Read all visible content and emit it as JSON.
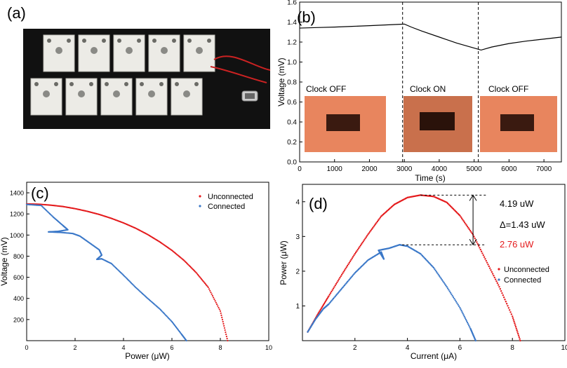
{
  "panel_labels": {
    "a": "(a)",
    "b": "(b)",
    "c": "(c)",
    "d": "(d)"
  },
  "colors": {
    "red": "#e41a1c",
    "blue": "#3b78c8",
    "photo_bg": "#111111",
    "photo_card": "#e8855e"
  },
  "panel_a": {
    "icons": [
      "battery-cell-icon",
      "clock-device-icon",
      "wire-icon"
    ]
  },
  "chart_data": [
    {
      "type": "line",
      "panel": "b",
      "xlabel": "Time (s)",
      "ylabel": "Voltage (mV)",
      "xlim": [
        0,
        7500
      ],
      "ylim": [
        0,
        1.6
      ],
      "xticks": [
        0,
        1000,
        2000,
        3000,
        4000,
        5000,
        6000,
        7000
      ],
      "yticks": [
        0,
        0.2,
        0.4,
        0.6,
        0.8,
        1.0,
        1.2,
        1.4,
        1.6
      ],
      "ytick_labels": [
        "0.0",
        "0.2",
        "0.4",
        "0.6",
        "0.8",
        "1.0",
        "1.2",
        "1.4",
        "1.6"
      ],
      "series": [
        {
          "x": [
            0,
            500,
            1000,
            1500,
            2000,
            2500,
            3000,
            3200,
            3500,
            4000,
            4500,
            5000,
            5200,
            5500,
            6000,
            6500,
            7000,
            7500
          ],
          "y": [
            1.34,
            1.345,
            1.35,
            1.357,
            1.364,
            1.372,
            1.38,
            1.35,
            1.31,
            1.25,
            1.19,
            1.14,
            1.12,
            1.15,
            1.185,
            1.21,
            1.23,
            1.25
          ],
          "color": "#000000"
        }
      ],
      "vlines": [
        2950,
        5120
      ],
      "insets": [
        {
          "label": "Clock OFF"
        },
        {
          "label": "Clock ON"
        },
        {
          "label": "Clock OFF"
        }
      ]
    },
    {
      "type": "scatter",
      "panel": "c",
      "xlabel": "Power (μW)",
      "ylabel": "Voltage (mV)",
      "xlim": [
        0,
        10
      ],
      "ylim": [
        0,
        1500
      ],
      "xticks": [
        0,
        2,
        4,
        6,
        8,
        10
      ],
      "yticks": [
        200,
        400,
        600,
        800,
        1000,
        1200,
        1400
      ],
      "legend": [
        {
          "name": "Unconnected",
          "color": "#e41a1c"
        },
        {
          "name": "Connected",
          "color": "#3b78c8"
        }
      ],
      "series": [
        {
          "name": "Unconnected",
          "color": "#e41a1c",
          "x": [
            0.0,
            0.5,
            1.0,
            1.5,
            2.0,
            2.5,
            3.0,
            3.5,
            4.0,
            4.5,
            5.0,
            5.5,
            6.0,
            6.5,
            7.0,
            7.5,
            8.0,
            8.3
          ],
          "y": [
            1295,
            1292,
            1283,
            1270,
            1250,
            1225,
            1195,
            1158,
            1115,
            1065,
            1005,
            935,
            855,
            760,
            645,
            505,
            280,
            0
          ]
        },
        {
          "name": "Connected",
          "color": "#3b78c8",
          "x": [
            0.0,
            0.6,
            1.1,
            1.5,
            1.7,
            1.3,
            0.9,
            1.4,
            1.9,
            2.2,
            2.6,
            3.0,
            3.1,
            2.9,
            3.1,
            3.5,
            4.0,
            4.5,
            5.0,
            5.5,
            6.0,
            6.4,
            6.6
          ],
          "y": [
            1290,
            1280,
            1170,
            1090,
            1050,
            1035,
            1030,
            1025,
            1015,
            990,
            925,
            860,
            810,
            770,
            775,
            730,
            620,
            505,
            400,
            300,
            180,
            60,
            0
          ]
        }
      ]
    },
    {
      "type": "scatter",
      "panel": "d",
      "xlabel": "Current (μA)",
      "ylabel": "Power (μW)",
      "xlim": [
        0,
        10
      ],
      "ylim": [
        0,
        4.5
      ],
      "xticks": [
        2,
        4,
        6,
        8,
        10
      ],
      "yticks": [
        1,
        2,
        3,
        4
      ],
      "legend": [
        {
          "name": "Unconnected",
          "color": "#e41a1c"
        },
        {
          "name": "Connected",
          "color": "#3b78c8"
        }
      ],
      "series": [
        {
          "name": "Unconnected",
          "color": "#e41a1c",
          "x": [
            0.2,
            0.6,
            1.0,
            1.5,
            2.0,
            2.5,
            3.0,
            3.5,
            4.0,
            4.5,
            5.0,
            5.5,
            6.0,
            6.5,
            7.0,
            7.5,
            8.0,
            8.3
          ],
          "y": [
            0.25,
            0.78,
            1.28,
            1.9,
            2.5,
            3.06,
            3.58,
            3.92,
            4.12,
            4.19,
            4.15,
            3.98,
            3.6,
            3.05,
            2.3,
            1.55,
            0.7,
            0.0
          ]
        },
        {
          "name": "Connected",
          "color": "#3b78c8",
          "x": [
            0.2,
            0.5,
            0.8,
            1.0,
            1.5,
            2.0,
            2.5,
            3.0,
            3.1,
            2.9,
            3.3,
            3.7,
            4.0,
            4.5,
            5.0,
            5.5,
            6.0,
            6.4,
            6.6
          ],
          "y": [
            0.25,
            0.62,
            0.92,
            1.05,
            1.5,
            1.95,
            2.32,
            2.55,
            2.35,
            2.6,
            2.66,
            2.76,
            2.72,
            2.5,
            2.1,
            1.55,
            0.95,
            0.35,
            0.0
          ]
        }
      ],
      "annotations": {
        "max_unconnected": "4.19 uW",
        "delta": "Δ=1.43 uW",
        "max_connected": "2.76 uW"
      }
    }
  ]
}
